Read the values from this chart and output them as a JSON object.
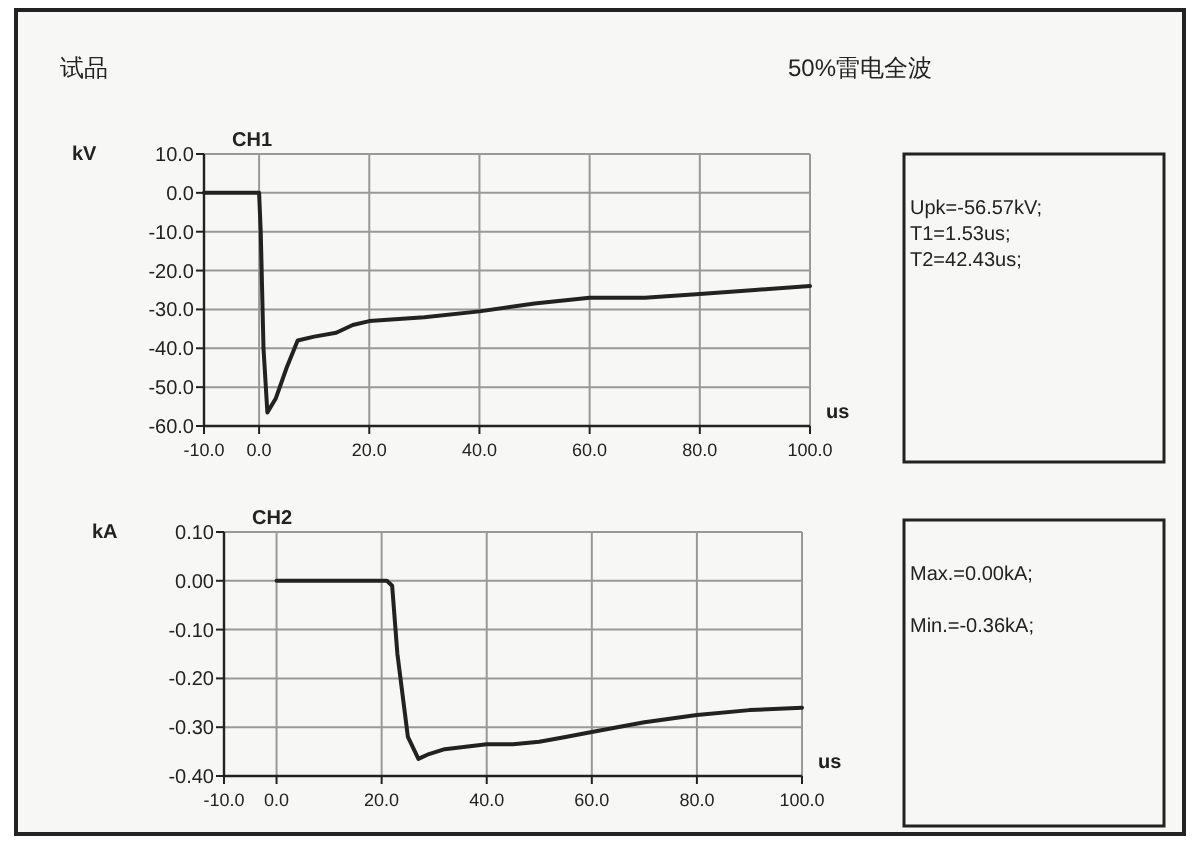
{
  "chart_data": [
    {
      "type": "other",
      "title": "试品",
      "subtitle": "50%雷电全波"
    },
    {
      "type": "line",
      "title": "CH1",
      "xlabel": "us",
      "ylabel": "kV",
      "grid": true,
      "line_style": "solid",
      "xlim": [
        -10,
        100
      ],
      "ylim": [
        -60,
        10
      ],
      "xticks": [
        {
          "value": -10,
          "label": "-10.0"
        },
        {
          "value": 0,
          "label": "0.0"
        },
        {
          "value": 20,
          "label": "20.0"
        },
        {
          "value": 40,
          "label": "40.0"
        },
        {
          "value": 60,
          "label": "60.0"
        },
        {
          "value": 80,
          "label": "80.0"
        },
        {
          "value": 100,
          "label": "100.0"
        }
      ],
      "yticks": [
        {
          "value": 10,
          "label": "10.0"
        },
        {
          "value": 0,
          "label": "0.0"
        },
        {
          "value": -10,
          "label": "-10.0"
        },
        {
          "value": -20,
          "label": "-20.0"
        },
        {
          "value": -30,
          "label": "-30.0"
        },
        {
          "value": -40,
          "label": "-40.0"
        },
        {
          "value": -50,
          "label": "-50.0"
        },
        {
          "value": -60,
          "label": "-60.0"
        }
      ],
      "series": [
        {
          "color": "#222222",
          "x": [
            -10,
            0,
            0.3,
            0.8,
            1.5,
            3,
            5,
            7,
            10,
            14,
            17,
            20,
            30,
            40,
            50,
            60,
            70,
            80,
            90,
            100
          ],
          "values": [
            0,
            0,
            -10,
            -40,
            -56.5,
            -53,
            -45,
            -38,
            -37,
            -36,
            -34,
            -33,
            -32,
            -30.5,
            -28.5,
            -27,
            -27,
            -26,
            -25,
            -24
          ]
        }
      ]
    },
    {
      "type": "other",
      "annotations": [
        "Upk=-56.57kV;",
        "T1=1.53us;",
        "T2=42.43us;"
      ]
    },
    {
      "type": "line",
      "title": "CH2",
      "xlabel": "us",
      "ylabel": "kA",
      "grid": true,
      "line_style": "solid",
      "xlim": [
        -10,
        100
      ],
      "ylim": [
        -0.4,
        0.1
      ],
      "xticks": [
        {
          "value": -10,
          "label": "-10.0"
        },
        {
          "value": 0,
          "label": "0.0"
        },
        {
          "value": 20,
          "label": "20.0"
        },
        {
          "value": 40,
          "label": "40.0"
        },
        {
          "value": 60,
          "label": "60.0"
        },
        {
          "value": 80,
          "label": "80.0"
        },
        {
          "value": 100,
          "label": "100.0"
        }
      ],
      "yticks": [
        {
          "value": 0.1,
          "label": "0.10"
        },
        {
          "value": 0,
          "label": "0.00"
        },
        {
          "value": -0.1,
          "label": "-0.10"
        },
        {
          "value": -0.2,
          "label": "-0.20"
        },
        {
          "value": -0.3,
          "label": "-0.30"
        },
        {
          "value": -0.4,
          "label": "-0.40"
        }
      ],
      "series": [
        {
          "color": "#222222",
          "x": [
            0,
            10,
            21,
            22,
            23,
            25,
            27,
            29,
            32,
            36,
            40,
            45,
            50,
            55,
            60,
            70,
            80,
            90,
            100
          ],
          "values": [
            0,
            0,
            0,
            -0.01,
            -0.15,
            -0.32,
            -0.365,
            -0.355,
            -0.345,
            -0.34,
            -0.335,
            -0.335,
            -0.33,
            -0.32,
            -0.31,
            -0.29,
            -0.275,
            -0.265,
            -0.26
          ]
        }
      ]
    },
    {
      "type": "other",
      "annotations": [
        "Max.=0.00kA;",
        "Min.=-0.36kA;"
      ]
    }
  ]
}
